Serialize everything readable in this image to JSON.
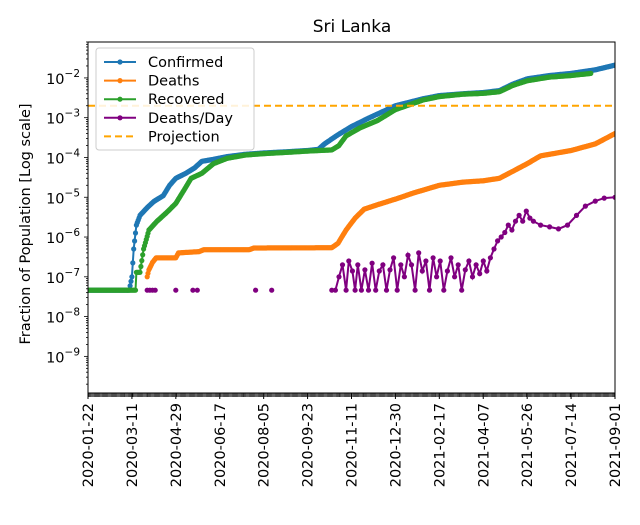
{
  "chart_data": {
    "type": "line",
    "title": "Sri Lanka",
    "xlabel": "",
    "ylabel": "Fraction of Population [Log scale]",
    "yscale": "log",
    "ylim": [
      1.2e-10,
      0.08
    ],
    "xlim": [
      "2020-01-22",
      "2021-09-01"
    ],
    "grid": false,
    "legend_position": "top-left",
    "y_ticks": [
      {
        "value": 1e-09,
        "base": "10",
        "exp": "−9"
      },
      {
        "value": 1e-08,
        "base": "10",
        "exp": "−8"
      },
      {
        "value": 1e-07,
        "base": "10",
        "exp": "−7"
      },
      {
        "value": 1e-06,
        "base": "10",
        "exp": "−6"
      },
      {
        "value": 1e-05,
        "base": "10",
        "exp": "−5"
      },
      {
        "value": 0.0001,
        "base": "10",
        "exp": "−4"
      },
      {
        "value": 0.001,
        "base": "10",
        "exp": "−3"
      },
      {
        "value": 0.01,
        "base": "10",
        "exp": "−2"
      }
    ],
    "x_ticks": [
      "2020-01-22",
      "2020-03-11",
      "2020-04-29",
      "2020-06-17",
      "2020-08-05",
      "2020-09-23",
      "2020-11-11",
      "2020-12-30",
      "2021-02-17",
      "2021-04-07",
      "2021-05-26",
      "2021-07-14",
      "2021-09-01"
    ],
    "series": [
      {
        "name": "Confirmed",
        "color": "#1f77b4",
        "style": "line-dots",
        "points": [
          [
            "2020-01-22",
            4.6e-08
          ],
          [
            "2020-03-08",
            4.6e-08
          ],
          [
            "2020-03-11",
            1e-07
          ],
          [
            "2020-03-13",
            5e-07
          ],
          [
            "2020-03-16",
            2e-06
          ],
          [
            "2020-03-20",
            3.5e-06
          ],
          [
            "2020-03-28",
            5.5e-06
          ],
          [
            "2020-04-05",
            8e-06
          ],
          [
            "2020-04-15",
            1.1e-05
          ],
          [
            "2020-04-22",
            2e-05
          ],
          [
            "2020-04-29",
            3e-05
          ],
          [
            "2020-05-10",
            4e-05
          ],
          [
            "2020-05-20",
            5.5e-05
          ],
          [
            "2020-05-28",
            8e-05
          ],
          [
            "2020-06-10",
            9e-05
          ],
          [
            "2020-06-25",
            0.000105
          ],
          [
            "2020-07-15",
            0.00012
          ],
          [
            "2020-08-05",
            0.00013
          ],
          [
            "2020-09-01",
            0.00014
          ],
          [
            "2020-09-23",
            0.00015
          ],
          [
            "2020-10-05",
            0.00016
          ],
          [
            "2020-10-12",
            0.00022
          ],
          [
            "2020-10-25",
            0.00035
          ],
          [
            "2020-11-11",
            0.0006
          ],
          [
            "2020-12-01",
            0.001
          ],
          [
            "2020-12-30",
            0.002
          ],
          [
            "2021-01-30",
            0.003
          ],
          [
            "2021-02-17",
            0.0036
          ],
          [
            "2021-03-15",
            0.004
          ],
          [
            "2021-04-07",
            0.0043
          ],
          [
            "2021-04-25",
            0.0048
          ],
          [
            "2021-05-10",
            0.007
          ],
          [
            "2021-05-26",
            0.0095
          ],
          [
            "2021-06-20",
            0.0115
          ],
          [
            "2021-07-14",
            0.013
          ],
          [
            "2021-08-10",
            0.016
          ],
          [
            "2021-09-01",
            0.021
          ]
        ]
      },
      {
        "name": "Deaths",
        "color": "#ff7f0e",
        "style": "line-dots",
        "points": [
          [
            "2020-03-28",
            1e-07
          ],
          [
            "2020-03-30",
            1.5e-07
          ],
          [
            "2020-04-03",
            2.3e-07
          ],
          [
            "2020-04-07",
            3e-07
          ],
          [
            "2020-04-29",
            3e-07
          ],
          [
            "2020-05-02",
            4e-07
          ],
          [
            "2020-05-25",
            4.3e-07
          ],
          [
            "2020-05-30",
            4.8e-07
          ],
          [
            "2020-07-20",
            4.8e-07
          ],
          [
            "2020-07-25",
            5.3e-07
          ],
          [
            "2020-10-20",
            5.4e-07
          ],
          [
            "2020-10-27",
            7e-07
          ],
          [
            "2020-11-05",
            1.5e-06
          ],
          [
            "2020-11-15",
            3e-06
          ],
          [
            "2020-11-25",
            5e-06
          ],
          [
            "2020-12-10",
            6.5e-06
          ],
          [
            "2020-12-30",
            9e-06
          ],
          [
            "2021-01-20",
            1.3e-05
          ],
          [
            "2021-02-17",
            2e-05
          ],
          [
            "2021-03-15",
            2.4e-05
          ],
          [
            "2021-04-07",
            2.6e-05
          ],
          [
            "2021-04-25",
            3e-05
          ],
          [
            "2021-05-10",
            4.5e-05
          ],
          [
            "2021-05-26",
            7e-05
          ],
          [
            "2021-06-10",
            0.00011
          ],
          [
            "2021-07-14",
            0.00015
          ],
          [
            "2021-08-10",
            0.00022
          ],
          [
            "2021-09-01",
            0.0004
          ]
        ]
      },
      {
        "name": "Recovered",
        "color": "#2ca02c",
        "style": "line-dots",
        "points": [
          [
            "2020-01-22",
            4.6e-08
          ],
          [
            "2020-03-15",
            4.6e-08
          ],
          [
            "2020-03-16",
            1.3e-07
          ],
          [
            "2020-03-20",
            1.3e-07
          ],
          [
            "2020-03-24",
            5e-07
          ],
          [
            "2020-03-30",
            1.5e-06
          ],
          [
            "2020-04-08",
            2.5e-06
          ],
          [
            "2020-04-18",
            4e-06
          ],
          [
            "2020-04-29",
            7e-06
          ],
          [
            "2020-05-08",
            1.5e-05
          ],
          [
            "2020-05-16",
            3e-05
          ],
          [
            "2020-05-28",
            4e-05
          ],
          [
            "2020-06-10",
            7e-05
          ],
          [
            "2020-06-25",
            9.5e-05
          ],
          [
            "2020-07-15",
            0.000115
          ],
          [
            "2020-08-05",
            0.000125
          ],
          [
            "2020-09-01",
            0.000135
          ],
          [
            "2020-09-23",
            0.000145
          ],
          [
            "2020-10-20",
            0.000155
          ],
          [
            "2020-10-28",
            0.0002
          ],
          [
            "2020-11-05",
            0.00035
          ],
          [
            "2020-11-20",
            0.00055
          ],
          [
            "2020-12-10",
            0.00085
          ],
          [
            "2020-12-30",
            0.0016
          ],
          [
            "2021-01-30",
            0.0028
          ],
          [
            "2021-02-17",
            0.0034
          ],
          [
            "2021-03-15",
            0.0039
          ],
          [
            "2021-04-07",
            0.0041
          ],
          [
            "2021-04-25",
            0.0045
          ],
          [
            "2021-05-10",
            0.0065
          ],
          [
            "2021-05-26",
            0.0085
          ],
          [
            "2021-06-20",
            0.0105
          ],
          [
            "2021-07-14",
            0.0115
          ],
          [
            "2021-08-05",
            0.013
          ]
        ]
      },
      {
        "name": "Deaths/Day",
        "color": "#800080",
        "style": "line-dots",
        "points": [
          [
            "2020-03-28",
            4.6e-08
          ],
          [
            "2020-03-31",
            4.6e-08
          ],
          [
            "2020-04-03",
            4.6e-08
          ],
          [
            "2020-04-06",
            4.6e-08
          ],
          [
            "2020-04-29",
            4.6e-08
          ],
          [
            "2020-05-18",
            4.6e-08
          ],
          [
            "2020-05-23",
            4.6e-08
          ],
          [
            "2020-07-27",
            4.6e-08
          ],
          [
            "2020-08-14",
            4.6e-08
          ],
          [
            "2020-10-20",
            4.6e-08
          ],
          [
            "2020-10-24",
            4.6e-08
          ],
          [
            "2020-10-28",
            1e-07
          ],
          [
            "2020-11-01",
            2e-07
          ],
          [
            "2020-11-05",
            4.6e-08
          ],
          [
            "2020-11-08",
            2.5e-07
          ],
          [
            "2020-11-12",
            1.4e-07
          ],
          [
            "2020-11-15",
            4.6e-08
          ],
          [
            "2020-11-18",
            2e-07
          ],
          [
            "2020-11-22",
            4.6e-08
          ],
          [
            "2020-11-26",
            1.5e-07
          ],
          [
            "2020-11-30",
            4.6e-08
          ],
          [
            "2020-12-04",
            2.2e-07
          ],
          [
            "2020-12-08",
            4.6e-08
          ],
          [
            "2020-12-12",
            1.4e-07
          ],
          [
            "2020-12-16",
            2e-07
          ],
          [
            "2020-12-20",
            4.6e-08
          ],
          [
            "2020-12-24",
            1.5e-07
          ],
          [
            "2020-12-28",
            3e-07
          ],
          [
            "2021-01-01",
            4.6e-08
          ],
          [
            "2021-01-05",
            2e-07
          ],
          [
            "2021-01-09",
            1e-07
          ],
          [
            "2021-01-13",
            3.5e-07
          ],
          [
            "2021-01-17",
            2e-07
          ],
          [
            "2021-01-21",
            4.6e-08
          ],
          [
            "2021-01-25",
            4e-07
          ],
          [
            "2021-01-29",
            1.4e-07
          ],
          [
            "2021-02-02",
            2.5e-07
          ],
          [
            "2021-02-06",
            4.6e-08
          ],
          [
            "2021-02-10",
            3e-07
          ],
          [
            "2021-02-14",
            1e-07
          ],
          [
            "2021-02-18",
            2.5e-07
          ],
          [
            "2021-02-22",
            4.6e-08
          ],
          [
            "2021-02-26",
            1.4e-07
          ],
          [
            "2021-03-02",
            3e-07
          ],
          [
            "2021-03-06",
            1e-07
          ],
          [
            "2021-03-10",
            2e-07
          ],
          [
            "2021-03-14",
            4.6e-08
          ],
          [
            "2021-03-18",
            1.5e-07
          ],
          [
            "2021-03-22",
            2.5e-07
          ],
          [
            "2021-03-26",
            1e-07
          ],
          [
            "2021-03-30",
            2e-07
          ],
          [
            "2021-04-03",
            1.2e-07
          ],
          [
            "2021-04-07",
            2.5e-07
          ],
          [
            "2021-04-11",
            1.4e-07
          ],
          [
            "2021-04-15",
            3e-07
          ],
          [
            "2021-04-19",
            5e-07
          ],
          [
            "2021-04-23",
            8e-07
          ],
          [
            "2021-04-27",
            1e-06
          ],
          [
            "2021-05-01",
            1.3e-06
          ],
          [
            "2021-05-05",
            2e-06
          ],
          [
            "2021-05-09",
            1.5e-06
          ],
          [
            "2021-05-13",
            2.5e-06
          ],
          [
            "2021-05-17",
            3.5e-06
          ],
          [
            "2021-05-21",
            2.5e-06
          ],
          [
            "2021-05-25",
            4.5e-06
          ],
          [
            "2021-05-29",
            3e-06
          ],
          [
            "2021-06-02",
            2.5e-06
          ],
          [
            "2021-06-10",
            2e-06
          ],
          [
            "2021-06-20",
            1.8e-06
          ],
          [
            "2021-06-30",
            1.6e-06
          ],
          [
            "2021-07-10",
            2e-06
          ],
          [
            "2021-07-20",
            3.5e-06
          ],
          [
            "2021-07-30",
            6e-06
          ],
          [
            "2021-08-10",
            8e-06
          ],
          [
            "2021-08-20",
            9.5e-06
          ],
          [
            "2021-09-01",
            1e-05
          ]
        ]
      },
      {
        "name": "Projection",
        "color": "#ffa500",
        "style": "dashed",
        "value": 0.002
      }
    ]
  }
}
